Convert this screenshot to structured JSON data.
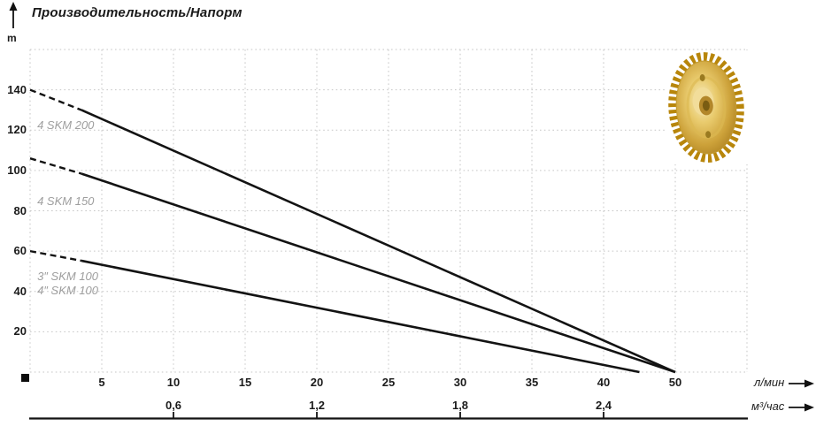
{
  "header": {
    "title": "Производительность/Напорм",
    "y_unit": "m"
  },
  "axes_units": {
    "primary": "л/мин",
    "secondary": "м³/час"
  },
  "icons": {
    "y_axis_arrow": "up-arrow",
    "x_axis_arrow": "right-arrow",
    "impeller": "brass-pump-impeller"
  },
  "colors": {
    "line": "#131313",
    "grid": "#c6c6c6",
    "text": "#1b1b1b",
    "series_label": "#9e9e9e",
    "impeller_gold": "#cda23a"
  },
  "chart_data": {
    "type": "line",
    "title": "Производительность/Напорм",
    "ylabel": "m",
    "xlabel_primary": "л/мин",
    "xlabel_secondary": "м³/час",
    "ylim": [
      0,
      160
    ],
    "xlim_lpm": [
      0,
      50
    ],
    "grid": true,
    "legend_position": "inline-annotations",
    "y_ticks": [
      20,
      40,
      60,
      80,
      100,
      120,
      140
    ],
    "x_ticks_lpm": [
      5,
      10,
      15,
      20,
      25,
      30,
      35,
      40,
      50
    ],
    "x_ticks_m3h": [
      {
        "label": "0,6",
        "lpm": 10
      },
      {
        "label": "1,2",
        "lpm": 20
      },
      {
        "label": "1,8",
        "lpm": 30
      },
      {
        "label": "2,4",
        "lpm": 40
      }
    ],
    "dash_until_lpm": 3.6,
    "series": [
      {
        "name": "4 SKM 200",
        "points": [
          [
            0,
            140
          ],
          [
            50,
            0
          ]
        ]
      },
      {
        "name": "4 SKM 150",
        "points": [
          [
            0,
            106
          ],
          [
            50,
            0
          ]
        ]
      },
      {
        "name": "3\"/4\" SKM 100",
        "points": [
          [
            0,
            60
          ],
          [
            45,
            0
          ]
        ]
      }
    ],
    "annotations": [
      {
        "text": "4 SKM 200",
        "x_lpm": 0.5,
        "y_m": 122
      },
      {
        "text": "4 SKM 150",
        "x_lpm": 0.5,
        "y_m": 84
      },
      {
        "text": "3″ SKM 100",
        "x_lpm": 0.5,
        "y_m": 47
      },
      {
        "text": "4″ SKM 100",
        "x_lpm": 0.5,
        "y_m": 40
      }
    ]
  }
}
